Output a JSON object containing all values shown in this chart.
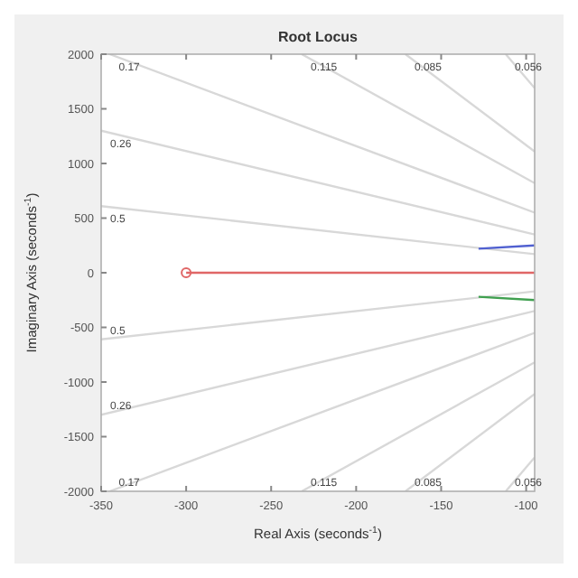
{
  "chart_data": {
    "type": "line",
    "title": "Root Locus",
    "xlabel": "Real Axis (seconds$^{-1}$)",
    "ylabel": "Imaginary Axis (seconds$^{-1}$)",
    "xlim": [
      -350,
      -95
    ],
    "xticks": [
      -350,
      -300,
      -250,
      -200,
      -150,
      -100
    ],
    "ylim": [
      -2000,
      2000
    ],
    "yticks": [
      -2000,
      -1500,
      -1000,
      -500,
      0,
      500,
      1000,
      1500,
      2000
    ],
    "series": [
      {
        "color": "#e06666",
        "x": [
          -300,
          -95
        ],
        "values": [
          0,
          0
        ]
      },
      {
        "color": "#5060d0",
        "x": [
          -128,
          -95
        ],
        "values": [
          220,
          250
        ]
      },
      {
        "color": "#40a050",
        "x": [
          -128,
          -95
        ],
        "values": [
          -220,
          -250
        ]
      },
      {
        "type": "scatter",
        "marker": "circle",
        "color": "#e06666",
        "x": [
          -300
        ],
        "values": [
          0
        ]
      },
      {
        "color": "#d8d8d8",
        "x": [
          -345,
          -95
        ],
        "values": [
          2000,
          550
        ]
      },
      {
        "color": "#d8d8d8",
        "x": [
          -350,
          -95
        ],
        "values": [
          1300,
          350
        ]
      },
      {
        "color": "#d8d8d8",
        "x": [
          -350,
          -95
        ],
        "values": [
          610,
          170
        ]
      },
      {
        "color": "#d8d8d8",
        "x": [
          -350,
          -95
        ],
        "values": [
          -610,
          -170
        ]
      },
      {
        "color": "#d8d8d8",
        "x": [
          -350,
          -95
        ],
        "values": [
          -1300,
          -350
        ]
      },
      {
        "color": "#d8d8d8",
        "x": [
          -345,
          -95
        ],
        "values": [
          -2000,
          -550
        ]
      },
      {
        "color": "#d8d8d8",
        "x": [
          -232,
          -95
        ],
        "values": [
          2000,
          820
        ]
      },
      {
        "color": "#d8d8d8",
        "x": [
          -171,
          -95
        ],
        "values": [
          2000,
          1110
        ]
      },
      {
        "color": "#d8d8d8",
        "x": [
          -112,
          -95
        ],
        "values": [
          2000,
          1690
        ]
      },
      {
        "color": "#d8d8d8",
        "x": [
          -232,
          -95
        ],
        "values": [
          -2000,
          -820
        ]
      },
      {
        "color": "#d8d8d8",
        "x": [
          -171,
          -95
        ],
        "values": [
          -2000,
          -1110
        ]
      },
      {
        "color": "#d8d8d8",
        "x": [
          -112,
          -95
        ],
        "values": [
          -2000,
          -1690
        ]
      }
    ],
    "annotations": [
      "0.17",
      "0.26",
      "0.5",
      "0.5",
      "0.26",
      "0.17",
      "0.115",
      "0.085",
      "0.056",
      "0.115",
      "0.085",
      "0.056"
    ]
  }
}
